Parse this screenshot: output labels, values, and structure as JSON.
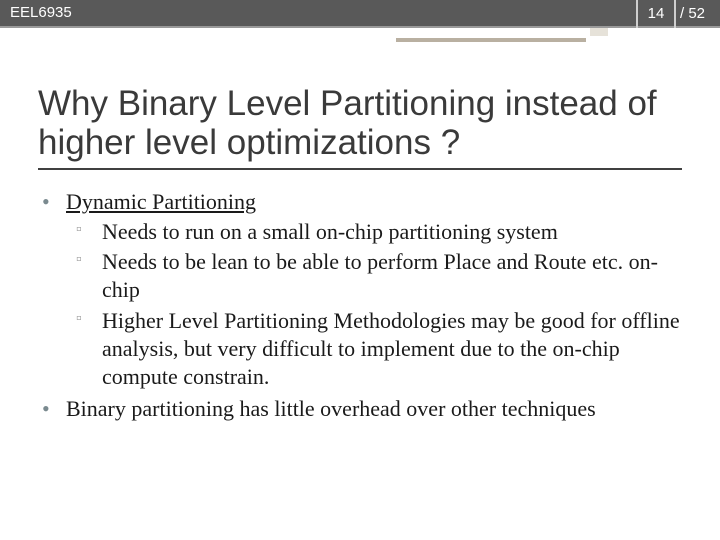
{
  "header": {
    "course_code": "EEL6935",
    "page_current": "14",
    "page_total": "/ 52"
  },
  "title": "Why Binary Level Partitioning instead of higher level optimizations ?",
  "bullets": {
    "b1_label": "Dynamic Partitioning",
    "b1_sub1": "Needs to run on a small on-chip partitioning system",
    "b1_sub2": " Needs to be lean to be able to perform Place and Route etc. on-chip",
    "b1_sub3": "Higher Level Partitioning Methodologies may be good for offline analysis, but very difficult to implement due to the on-chip compute constrain.",
    "b2": "Binary partitioning has little overhead over other techniques"
  },
  "colors": {
    "header_bg": "#595959",
    "accent": "#b9b0a1",
    "title_text": "#3a3a3a",
    "bullet_marker": "#7a8a8f"
  }
}
